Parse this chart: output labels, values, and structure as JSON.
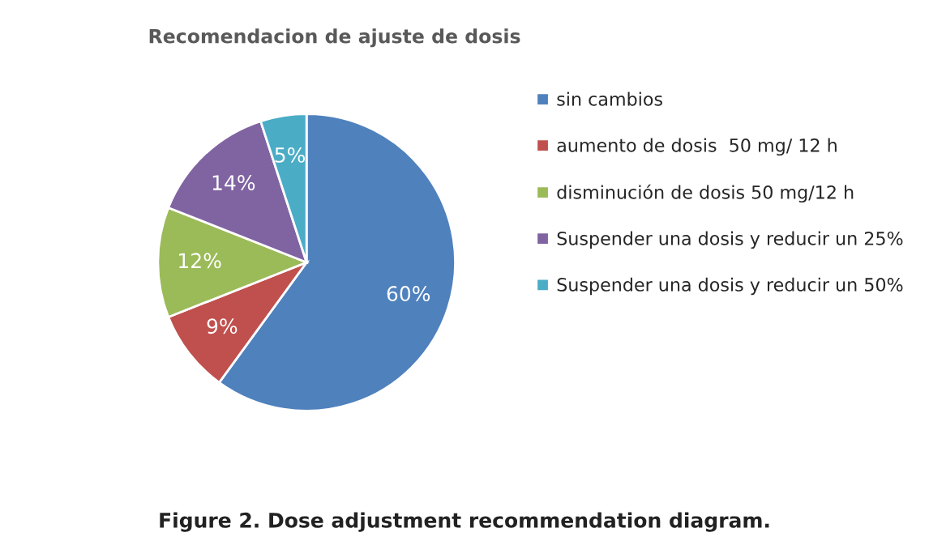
{
  "chart_data": {
    "type": "pie",
    "title": "Recomendacion de ajuste de dosis",
    "categories": [
      "sin cambios",
      "aumento de dosis  50 mg/ 12 h",
      "disminución de dosis 50 mg/12 h",
      "Suspender una dosis y reducir un 25%",
      "Suspender una dosis y reducir un 50%"
    ],
    "values": [
      60,
      9,
      12,
      14,
      5
    ],
    "value_labels": [
      "60%",
      "9%",
      "12%",
      "14%",
      "5%"
    ],
    "colors": [
      "#4f81bd",
      "#c0504d",
      "#9bbb59",
      "#8064a2",
      "#4bacc6"
    ],
    "legend": "right",
    "annotations": [
      "Figure 2. Dose adjustment recommendation diagram."
    ]
  }
}
